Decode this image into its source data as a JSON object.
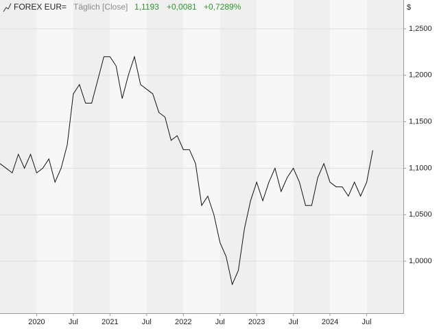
{
  "chart_data": {
    "type": "line",
    "title": "FOREX EUR=",
    "subtitle": "Täglich [Close]",
    "last": "1,1193",
    "change": "+0,0081",
    "change_pct": "+0,7289%",
    "y_unit": "$",
    "color": "#111111",
    "grid": true,
    "x": [
      "2019-07",
      "2019-08",
      "2019-09",
      "2019-10",
      "2019-11",
      "2019-12",
      "2020-01",
      "2020-02",
      "2020-03",
      "2020-04",
      "2020-05",
      "2020-06",
      "2020-07",
      "2020-08",
      "2020-09",
      "2020-10",
      "2020-11",
      "2020-12",
      "2021-01",
      "2021-02",
      "2021-03",
      "2021-04",
      "2021-05",
      "2021-06",
      "2021-07",
      "2021-08",
      "2021-09",
      "2021-10",
      "2021-11",
      "2021-12",
      "2022-01",
      "2022-02",
      "2022-03",
      "2022-04",
      "2022-05",
      "2022-06",
      "2022-07",
      "2022-08",
      "2022-09",
      "2022-10",
      "2022-11",
      "2022-12",
      "2023-01",
      "2023-02",
      "2023-03",
      "2023-04",
      "2023-05",
      "2023-06",
      "2023-07",
      "2023-08",
      "2023-09",
      "2023-10",
      "2023-11",
      "2023-12",
      "2024-01",
      "2024-02",
      "2024-03",
      "2024-04",
      "2024-05",
      "2024-06",
      "2024-07",
      "2024-08"
    ],
    "values": [
      1.105,
      1.1,
      1.095,
      1.115,
      1.1,
      1.115,
      1.095,
      1.1,
      1.11,
      1.085,
      1.1,
      1.125,
      1.18,
      1.19,
      1.17,
      1.17,
      1.195,
      1.22,
      1.22,
      1.21,
      1.175,
      1.2,
      1.22,
      1.19,
      1.185,
      1.18,
      1.16,
      1.155,
      1.13,
      1.135,
      1.12,
      1.12,
      1.105,
      1.06,
      1.07,
      1.05,
      1.02,
      1.005,
      0.975,
      0.99,
      1.035,
      1.065,
      1.085,
      1.065,
      1.085,
      1.1,
      1.075,
      1.09,
      1.1,
      1.085,
      1.06,
      1.06,
      1.09,
      1.105,
      1.085,
      1.08,
      1.08,
      1.07,
      1.085,
      1.07,
      1.085,
      1.1193
    ],
    "xlim": [
      "2019-07",
      "2025-01"
    ],
    "xticks": [
      {
        "value": "2020-01",
        "label": "2020"
      },
      {
        "value": "2020-07",
        "label": "Jul"
      },
      {
        "value": "2021-01",
        "label": "2021"
      },
      {
        "value": "2021-07",
        "label": "Jul"
      },
      {
        "value": "2022-01",
        "label": "2022"
      },
      {
        "value": "2022-07",
        "label": "Jul"
      },
      {
        "value": "2023-01",
        "label": "2023"
      },
      {
        "value": "2023-07",
        "label": "Jul"
      },
      {
        "value": "2024-01",
        "label": "2024"
      },
      {
        "value": "2024-07",
        "label": "Jul"
      }
    ],
    "ylim": [
      0.944,
      1.281
    ],
    "yticks": [
      {
        "value": 1.0,
        "label": "1,0000"
      },
      {
        "value": 1.05,
        "label": "1,0500"
      },
      {
        "value": 1.1,
        "label": "1,1000"
      },
      {
        "value": 1.15,
        "label": "1,1500"
      },
      {
        "value": 1.2,
        "label": "1,2000"
      },
      {
        "value": 1.25,
        "label": "1,2500"
      }
    ]
  }
}
